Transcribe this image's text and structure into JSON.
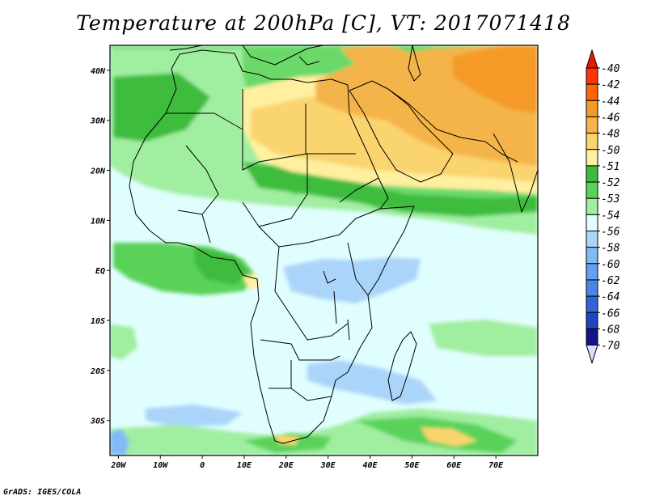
{
  "title": "Temperature at 200hPa [C], VT: 2017071418",
  "credit": "GrADS: IGES/COLA",
  "map": {
    "lon_range": [
      -22,
      80
    ],
    "lat_range": [
      -37,
      45
    ],
    "lat_ticks": [
      {
        "lat": 40,
        "label": "40N"
      },
      {
        "lat": 30,
        "label": "30N"
      },
      {
        "lat": 20,
        "label": "20N"
      },
      {
        "lat": 10,
        "label": "10N"
      },
      {
        "lat": 0,
        "label": "EQ"
      },
      {
        "lat": -10,
        "label": "10S"
      },
      {
        "lat": -20,
        "label": "20S"
      },
      {
        "lat": -30,
        "label": "30S"
      }
    ],
    "lon_ticks": [
      {
        "lon": -20,
        "label": "20W"
      },
      {
        "lon": -10,
        "label": "10W"
      },
      {
        "lon": 0,
        "label": "0"
      },
      {
        "lon": 10,
        "label": "10E"
      },
      {
        "lon": 20,
        "label": "20E"
      },
      {
        "lon": 30,
        "label": "30E"
      },
      {
        "lon": 40,
        "label": "40E"
      },
      {
        "lon": 50,
        "label": "50E"
      },
      {
        "lon": 60,
        "label": "60E"
      },
      {
        "lon": 70,
        "label": "70E"
      }
    ]
  },
  "legend": {
    "labels": [
      "-40",
      "-42",
      "-44",
      "-46",
      "-48",
      "-50",
      "-51",
      "-52",
      "-53",
      "-54",
      "-56",
      "-58",
      "-60",
      "-62",
      "-64",
      "-66",
      "-68",
      "-70"
    ],
    "colors": [
      "#e61a00",
      "#ff3300",
      "#ff6600",
      "#f59a26",
      "#f5b44a",
      "#fad46e",
      "#fff0a0",
      "#3cbc3c",
      "#5ad25a",
      "#a0eea0",
      "#e0fefe",
      "#aad4fa",
      "#82baf5",
      "#64a0f0",
      "#4a86e6",
      "#3266d8",
      "#1e46be",
      "#14148c",
      "#dcdcff"
    ]
  }
}
